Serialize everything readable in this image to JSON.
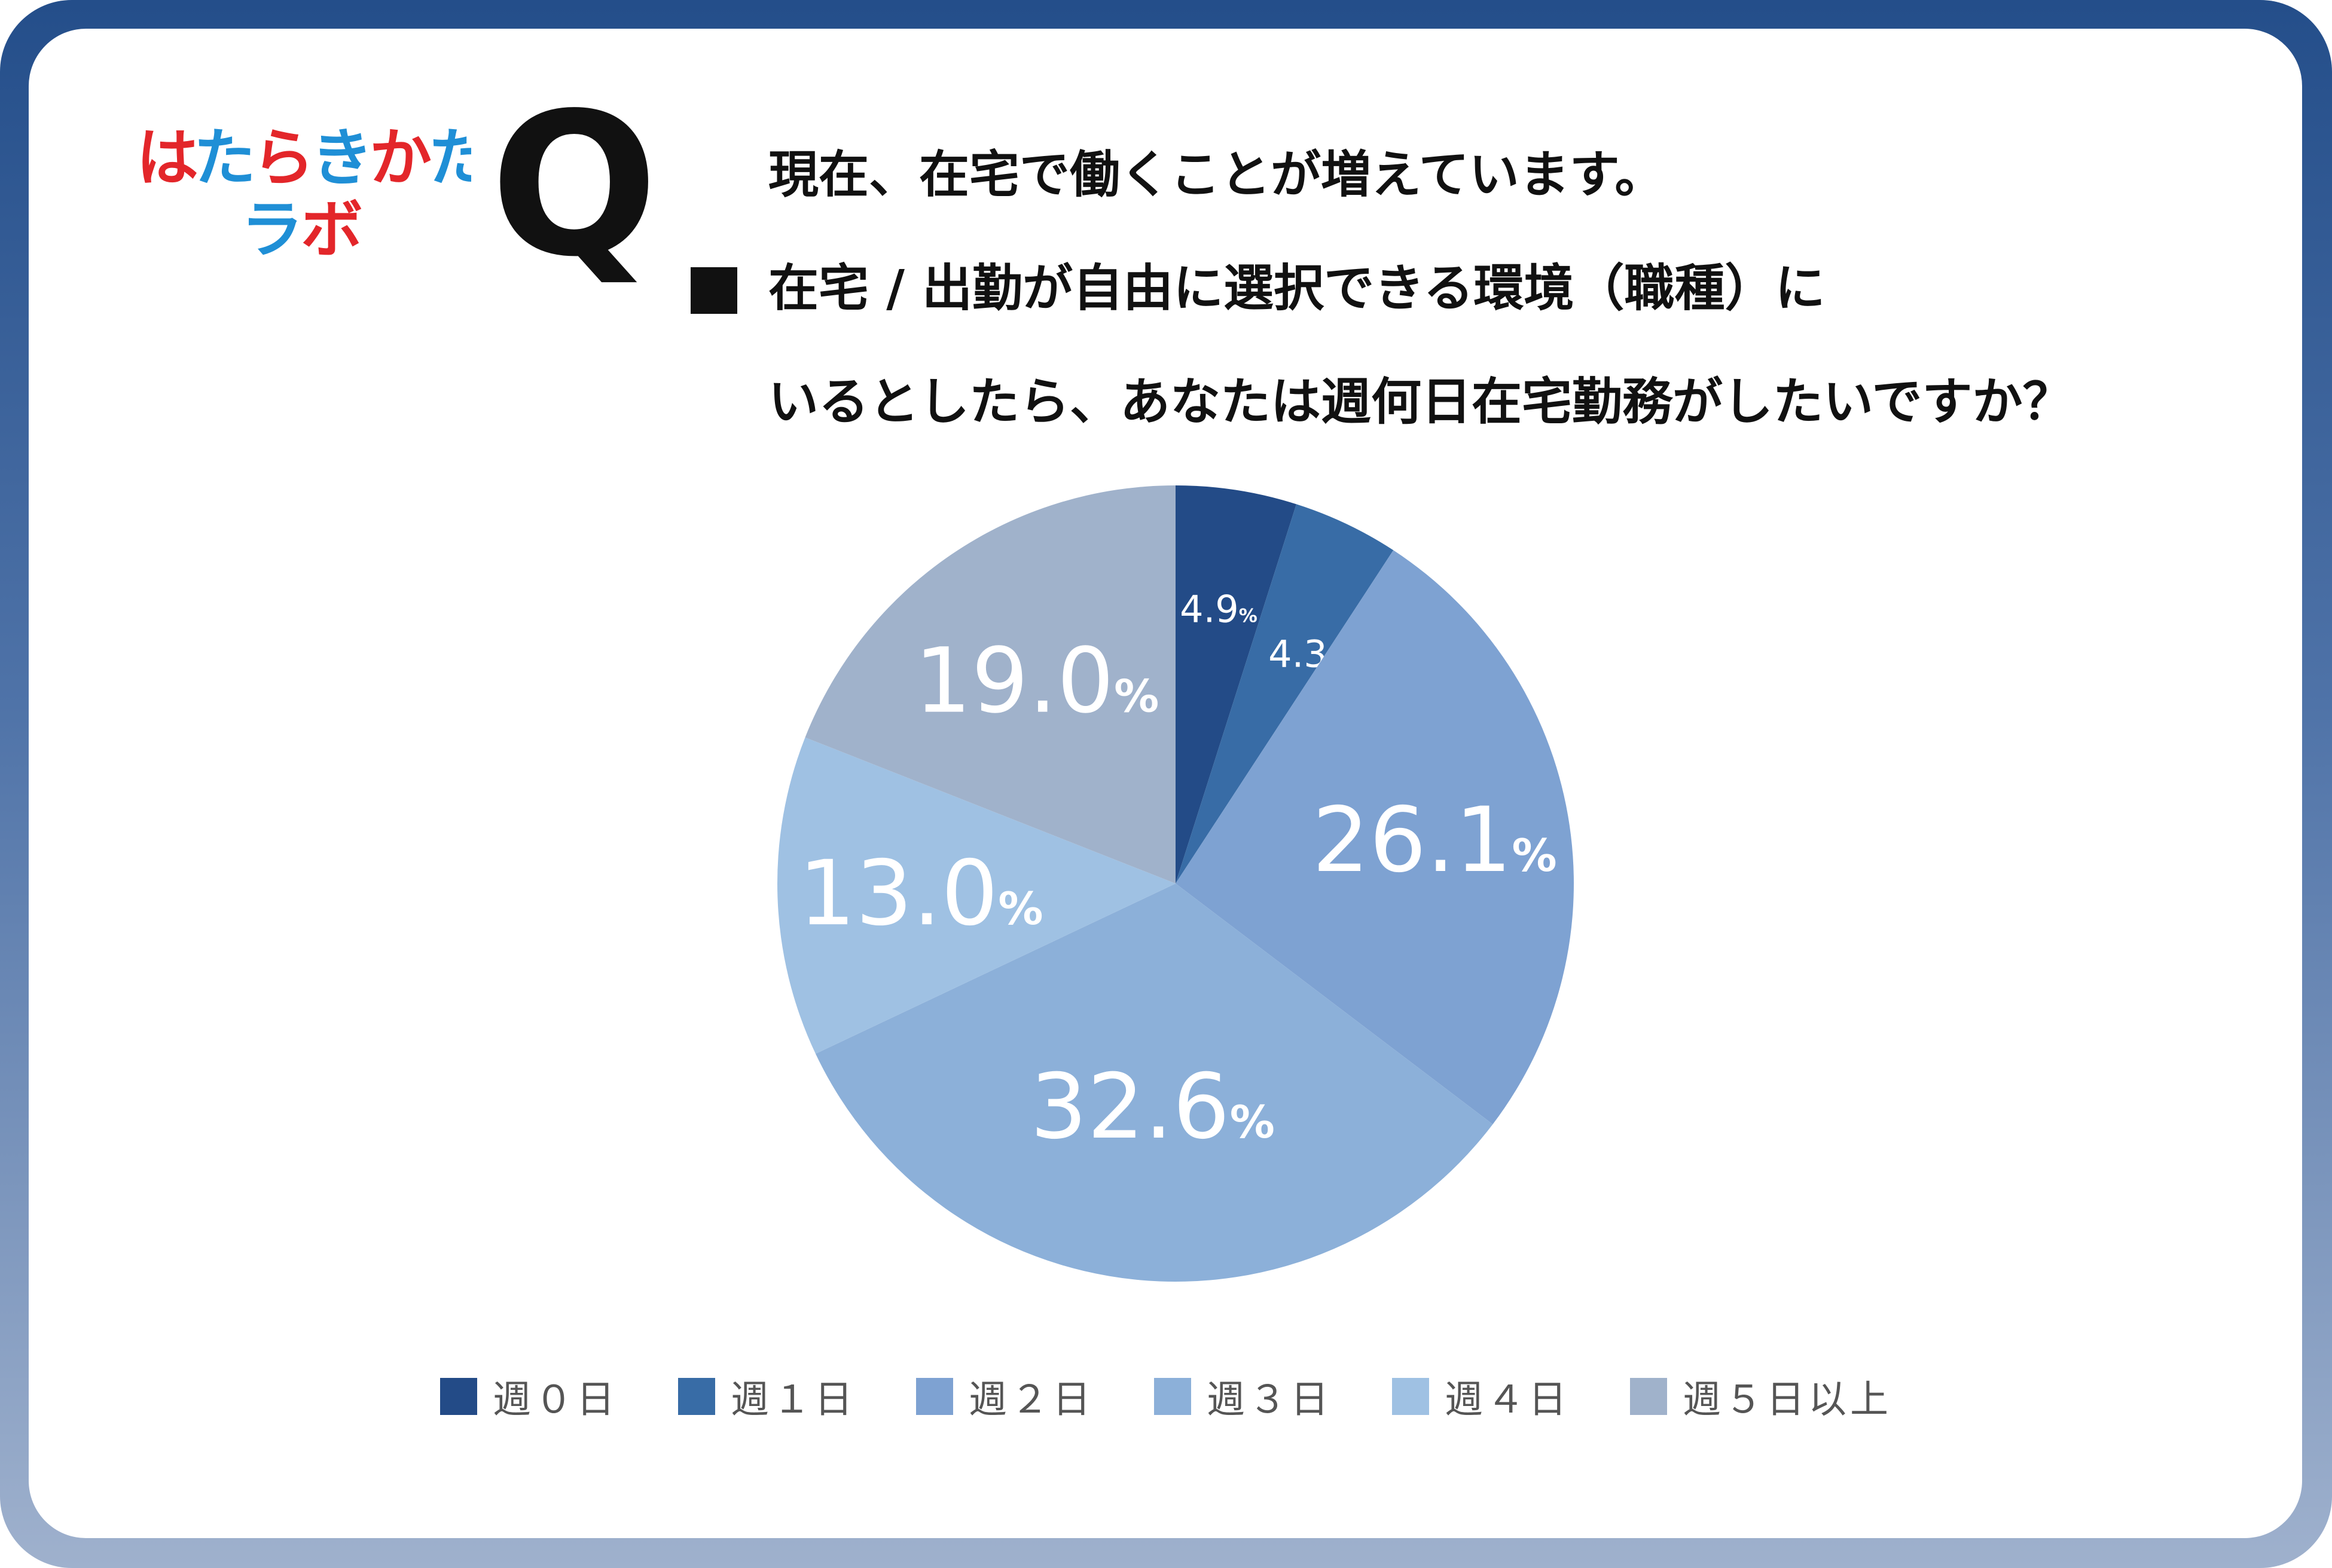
{
  "logo": {
    "line1": "はたらきかた",
    "line2": "ラボ"
  },
  "question": {
    "mark": "Q",
    "lines": [
      "現在、在宅で働くことが増えています。",
      "在宅 / 出勤が自由に選択できる環境（職種）に",
      "いるとしたら、あなたは週何日在宅勤務がしたいですか？"
    ]
  },
  "chart_data": {
    "type": "pie",
    "categories": [
      "週０日",
      "週１日",
      "週２日",
      "週３日",
      "週４日",
      "週５日以上"
    ],
    "values": [
      4.9,
      4.3,
      26.1,
      32.6,
      13.0,
      19.0
    ],
    "labels": [
      "4.9",
      "4.3",
      "26.1",
      "32.6",
      "13.0",
      "19.0"
    ],
    "unit": "%",
    "colors": [
      "#234b87",
      "#386ca6",
      "#7ea2d2",
      "#8cb0d9",
      "#9fc1e3",
      "#a0b2cb"
    ],
    "start": "12 o'clock, clockwise",
    "legend": "bottom"
  }
}
